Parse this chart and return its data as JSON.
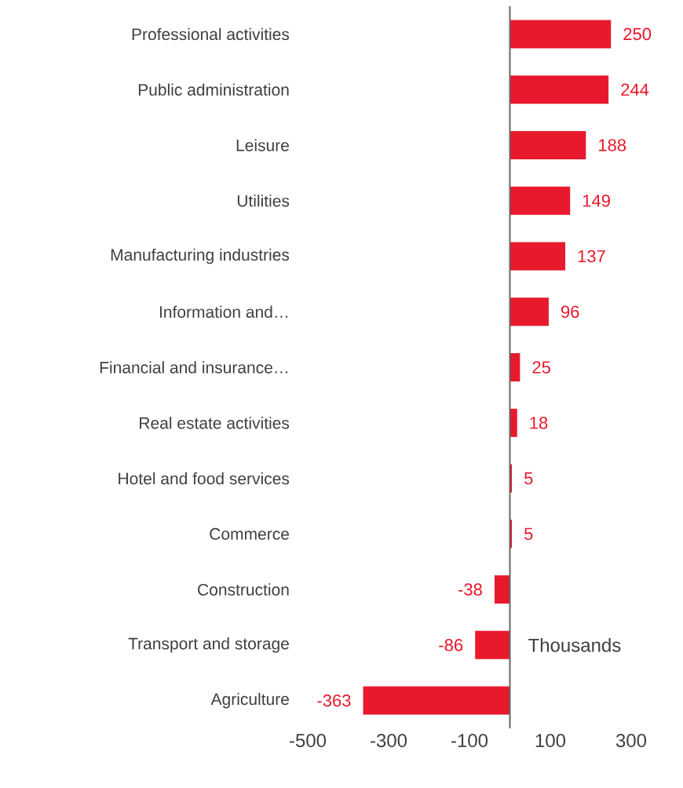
{
  "chart_data": {
    "type": "bar",
    "orientation": "horizontal",
    "categories": [
      "Professional activities",
      "Public administration",
      "Leisure",
      "Utilities",
      "Manufacturing industries",
      "Information and…",
      "Financial and insurance…",
      "Real estate activities",
      "Hotel and food services",
      "Commerce",
      "Construction",
      "Transport and storage",
      "Agriculture"
    ],
    "values": [
      250,
      244,
      188,
      149,
      137,
      96,
      25,
      18,
      5,
      5,
      -38,
      -86,
      -363
    ],
    "color": "#e8192c",
    "data_labels": true,
    "xlim": [
      -500,
      300
    ],
    "xticks": [
      -500,
      -300,
      -100,
      100,
      300
    ],
    "annotations": [
      "Thousands"
    ]
  }
}
